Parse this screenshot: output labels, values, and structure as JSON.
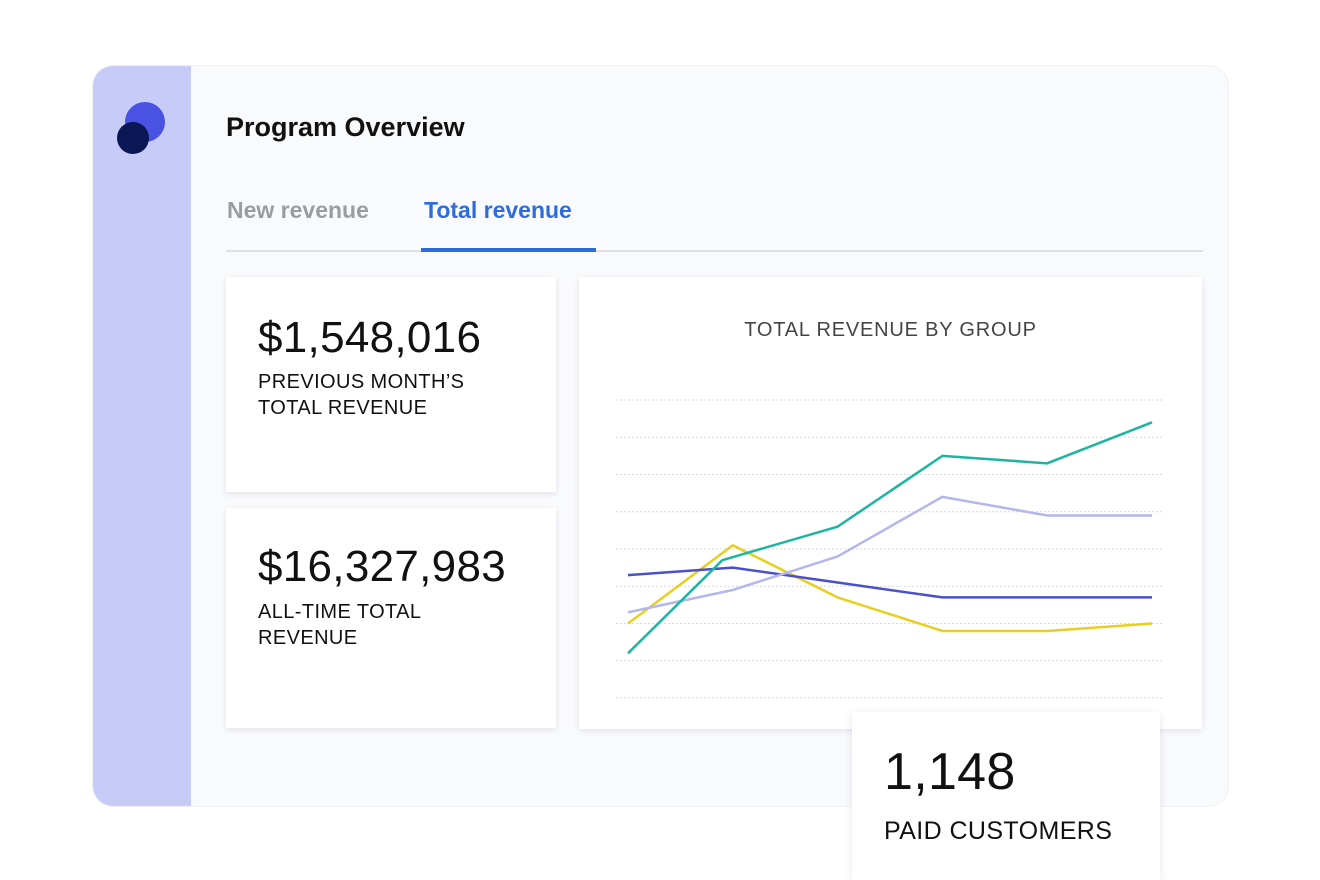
{
  "app": {
    "title": "Program Overview",
    "logo_icon": "app-logo-icon",
    "accent": "#2e6cdd",
    "sidebar_color": "#c7cbf7"
  },
  "tabs": [
    {
      "label": "New revenue",
      "active": false
    },
    {
      "label": "Total revenue",
      "active": true
    }
  ],
  "stats": {
    "previous_month": {
      "value": "$1,548,016",
      "label": "PREVIOUS MONTH’S TOTAL REVENUE"
    },
    "all_time": {
      "value": "$16,327,983",
      "label": "ALL-TIME TOTAL REVENUE"
    },
    "paid_customers": {
      "value": "1,148",
      "label": "PAID CUSTOMERS"
    }
  },
  "chart_data": {
    "type": "line",
    "title": "TOTAL REVENUE BY GROUP",
    "xlabel": "",
    "ylabel": "",
    "x": [
      1,
      2,
      3,
      4,
      5,
      6,
      7
    ],
    "ylim": [
      0,
      8
    ],
    "grid": true,
    "legend": "none",
    "series": [
      {
        "color": "#1db5a0",
        "values": [
          1.2,
          3.7,
          4.6,
          6.5,
          6.3,
          7.4,
          null
        ]
      },
      {
        "color": "#b4b6ec",
        "values": [
          2.3,
          2.9,
          3.8,
          5.4,
          4.9,
          4.9,
          null
        ]
      },
      {
        "color": "#4a4fcc",
        "values": [
          3.3,
          3.5,
          3.1,
          2.7,
          2.7,
          2.7,
          null
        ]
      },
      {
        "color": "#e8cf1f",
        "values": [
          2.0,
          4.1,
          2.7,
          1.8,
          1.8,
          2.0,
          null
        ]
      }
    ],
    "points": [
      [
        [
          0,
          1.2
        ],
        [
          1.8,
          3.7
        ],
        [
          4.0,
          4.6
        ],
        [
          6.0,
          6.5
        ],
        [
          8.0,
          6.3
        ],
        [
          10.0,
          7.4
        ]
      ],
      [
        [
          0,
          2.3
        ],
        [
          2.0,
          2.9
        ],
        [
          4.0,
          3.8
        ],
        [
          6.0,
          5.4
        ],
        [
          8.0,
          4.9
        ],
        [
          10.0,
          4.9
        ]
      ],
      [
        [
          0,
          3.3
        ],
        [
          2.0,
          3.5
        ],
        [
          4.0,
          3.1
        ],
        [
          6.0,
          2.7
        ],
        [
          8.0,
          2.7
        ],
        [
          10.0,
          2.7
        ]
      ],
      [
        [
          0,
          2.0
        ],
        [
          2.0,
          4.1
        ],
        [
          4.0,
          2.7
        ],
        [
          6.0,
          1.8
        ],
        [
          8.0,
          1.8
        ],
        [
          10.0,
          2.0
        ]
      ]
    ]
  }
}
